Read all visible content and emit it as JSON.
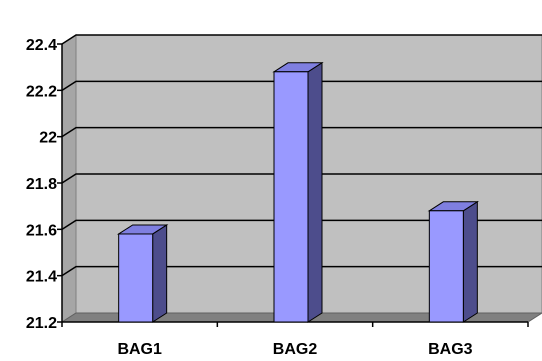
{
  "chart_data": {
    "type": "bar",
    "style": "3d-column",
    "categories": [
      "BAG1",
      "BAG2",
      "BAG3"
    ],
    "values": [
      21.58,
      22.28,
      21.68
    ],
    "ylim": [
      21.2,
      22.4
    ],
    "yticks": [
      21.2,
      21.4,
      21.6,
      21.8,
      22,
      22.2,
      22.4
    ],
    "ytick_labels": [
      "21.2",
      "21.4",
      "21.6",
      "21.8",
      "22",
      "22.2",
      "22.4"
    ],
    "grid": true,
    "legend": "none",
    "title": "",
    "xlabel": "",
    "ylabel": "",
    "colors": {
      "bar_front": "#9999ff",
      "bar_side": "#4d4d8c",
      "bar_top": "#7f7fe0",
      "plot_back": "#c0c0c0",
      "plot_floor": "#808080",
      "gridline": "#000000"
    }
  }
}
